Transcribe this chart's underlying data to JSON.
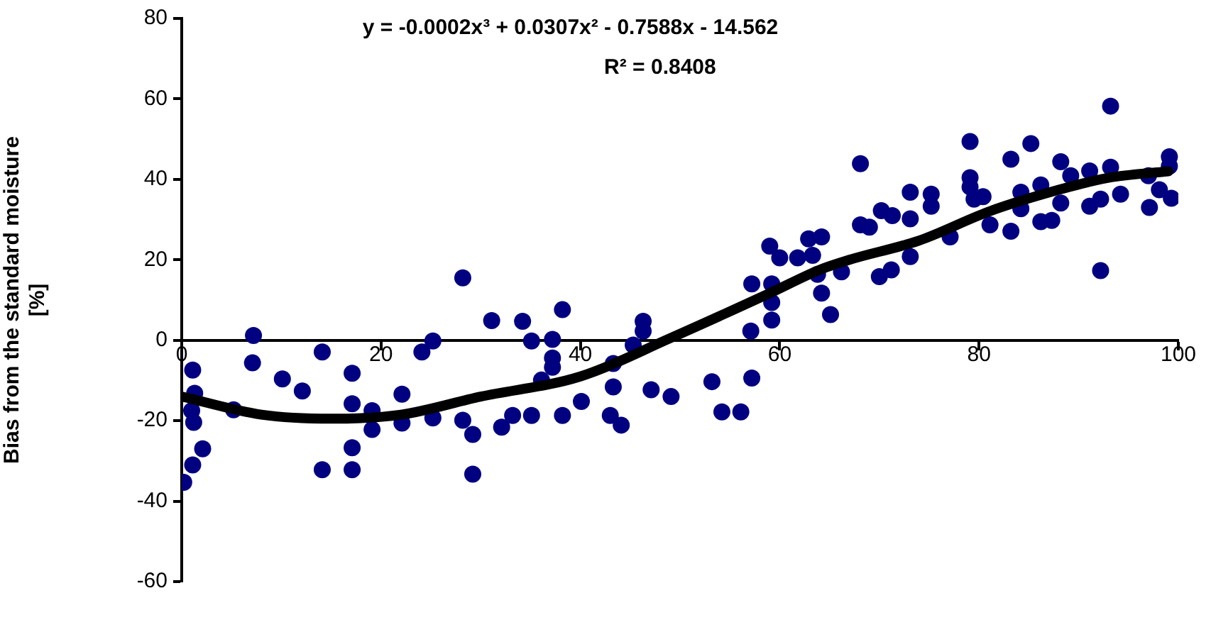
{
  "chart_data": {
    "type": "scatter",
    "ylabel": "Bias from the standard moisture [%]",
    "annotations": [
      "y = -0.0002x³ + 0.0307x² - 0.7588x - 14.562",
      "R² = 0.8408"
    ],
    "xlim": [
      0,
      100
    ],
    "xticks": [
      0,
      20,
      40,
      60,
      80,
      100
    ],
    "ylim": [
      -60,
      80
    ],
    "yticks": [
      -60,
      -40,
      -20,
      0,
      20,
      40,
      60,
      80
    ],
    "grid": false,
    "legend": false,
    "marker": "circle",
    "series": [
      {
        "color": "#000080",
        "x": [
          1.1,
          1.3,
          1.0,
          1.2,
          2.1,
          1.1,
          0.2,
          5.2,
          7.2,
          7.1,
          10.1,
          12.1,
          14.1,
          14.1,
          17.1,
          17.1,
          17.1,
          17.1,
          19.1,
          19.1,
          22.1,
          22.1,
          24.1,
          25.2,
          25.2,
          28.2,
          28.2,
          29.2,
          29.2,
          31.1,
          32.1,
          33.2,
          34.2,
          35.1,
          35.1,
          36.1,
          37.2,
          37.2,
          37.2,
          38.2,
          38.2,
          40.1,
          43.3,
          43.3,
          43.0,
          44.1,
          45.3,
          46.3,
          46.3,
          47.1,
          49.1,
          53.2,
          54.2,
          56.1,
          57.2,
          57.1,
          57.2,
          59.0,
          60.0,
          59.2,
          59.2,
          59.2,
          61.8,
          62.9,
          64.2,
          63.3,
          63.8,
          64.2,
          65.1,
          66.2,
          68.1,
          68.1,
          69.0,
          70.0,
          70.2,
          71.3,
          71.2,
          73.1,
          73.1,
          73.1,
          75.2,
          75.2,
          77.1,
          79.1,
          79.1,
          79.1,
          79.5,
          80.4,
          81.1,
          83.2,
          83.2,
          84.2,
          84.2,
          85.2,
          86.2,
          86.2,
          87.3,
          88.2,
          88.2,
          89.2,
          91.1,
          91.1,
          92.2,
          92.2,
          93.2,
          93.2,
          94.2,
          97.0,
          97.1,
          99.1,
          99.1,
          99.3,
          98.1
        ],
        "values": [
          -7.4,
          -13.2,
          -17.5,
          -20.4,
          -27,
          -31,
          -35.3,
          -17.3,
          1.2,
          -5.6,
          -9.6,
          -12.6,
          -2.9,
          -32.2,
          -8.2,
          -15.8,
          -26.7,
          -32.2,
          -17.5,
          -22.2,
          -13.4,
          -20.6,
          -2.9,
          -0.2,
          -19.3,
          15.5,
          -19.9,
          -23.4,
          -33.3,
          4.9,
          -21.6,
          -18.7,
          4.7,
          -0.2,
          -18.7,
          -9.9,
          0.2,
          -4.4,
          -6.7,
          7.6,
          -18.7,
          -15.2,
          -5.8,
          -11.6,
          -18.7,
          -21.1,
          -1.2,
          4.7,
          2.3,
          -12.3,
          -14.0,
          -10.3,
          -17.8,
          -17.8,
          -9.4,
          2.3,
          14.0,
          23.4,
          20.5,
          14.0,
          9.4,
          5.0,
          20.5,
          25.2,
          25.7,
          21.1,
          16.4,
          11.7,
          6.4,
          17.0,
          43.9,
          28.7,
          28.1,
          15.8,
          32.2,
          31.0,
          17.5,
          36.8,
          30.2,
          20.8,
          36.3,
          33.3,
          25.7,
          49.4,
          40.4,
          38.1,
          35.1,
          35.7,
          28.7,
          45.0,
          27.1,
          36.8,
          32.7,
          48.9,
          38.6,
          29.5,
          29.8,
          44.4,
          34.1,
          40.9,
          42.1,
          33.3,
          17.3,
          35.1,
          58.2,
          43.0,
          36.3,
          40.9,
          33.0,
          45.6,
          43.3,
          35.3,
          37.4
        ]
      },
      {
        "type": "line",
        "color": "#000000",
        "marker": "none",
        "x": [
          0,
          8,
          15,
          22,
          30,
          40,
          49,
          59,
          64,
          67,
          74,
          81,
          88,
          93,
          99
        ],
        "values": [
          -14,
          -18.5,
          -19.5,
          -18.5,
          -14,
          -9,
          0.5,
          11.7,
          17.5,
          20,
          24.8,
          32,
          37.4,
          40.4,
          42
        ]
      }
    ]
  }
}
